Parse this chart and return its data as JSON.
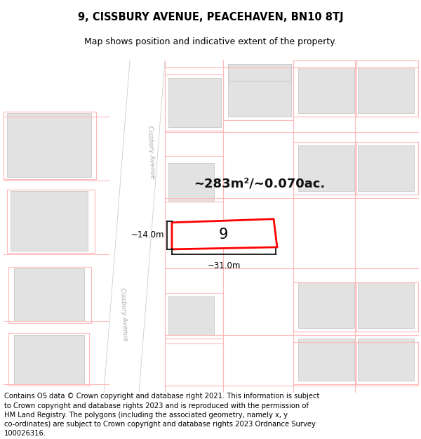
{
  "title_line1": "9, CISSBURY AVENUE, PEACEHAVEN, BN10 8TJ",
  "title_line2": "Map shows position and indicative extent of the property.",
  "footer_text": "Contains OS data © Crown copyright and database right 2021. This information is subject to Crown copyright and database rights 2023 and is reproduced with the permission of HM Land Registry. The polygons (including the associated geometry, namely x, y co-ordinates) are subject to Crown copyright and database rights 2023 Ordnance Survey 100026316.",
  "area_label": "~283m²/~0.070ac.",
  "width_label": "~31.0m",
  "height_label": "~14.0m",
  "property_number": "9",
  "map_bg": "#f2f2f2",
  "road_color": "#ffffff",
  "building_fill": "#e2e2e2",
  "building_stroke": "#bbbbbb",
  "property_stroke": "#ff0000",
  "property_fill": "#ffffff",
  "pink_line_color": "#ffb0b0",
  "street_label_color": "#aaaaaa",
  "title_fontsize": 10.5,
  "subtitle_fontsize": 9,
  "footer_fontsize": 7.2
}
